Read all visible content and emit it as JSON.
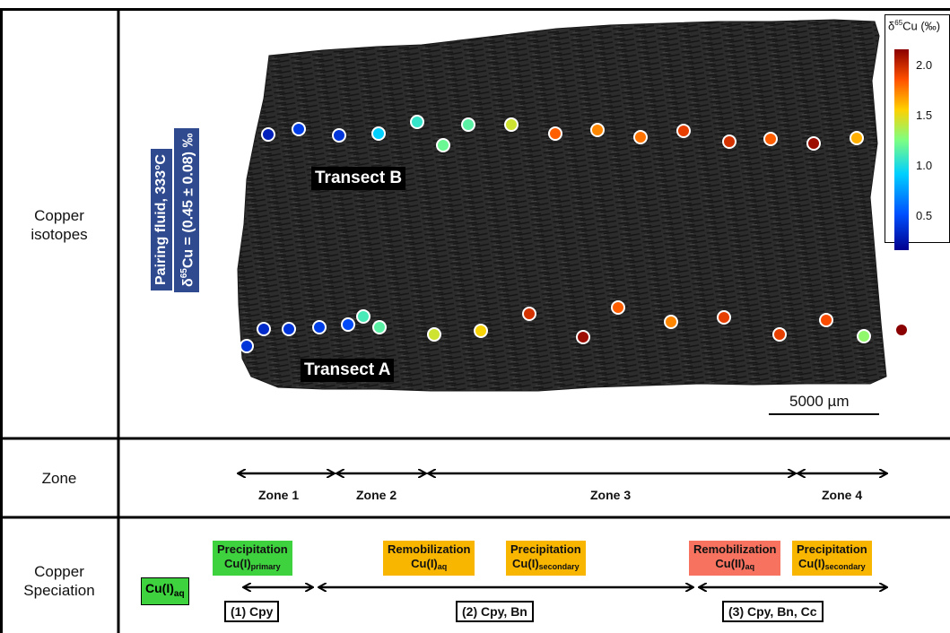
{
  "rows": {
    "copper_isotopes": {
      "line1": "Copper",
      "line2": "isotopes"
    },
    "zone": {
      "label": "Zone"
    },
    "copper_speciation": {
      "line1": "Copper",
      "line2": "Speciation"
    }
  },
  "pairing_fluid": {
    "line1": "Pairing fluid, 333°C",
    "line2_prefix": "δ",
    "line2_sup": "65",
    "line2_suffix": "Cu = (0.45 ± 0.08) ‰"
  },
  "transects": {
    "b": "Transect B",
    "a": "Transect A"
  },
  "scale_bar": {
    "label": "5000 µm"
  },
  "legend": {
    "title_prefix": "δ",
    "title_sup": "65",
    "title_suffix": "Cu (‰)",
    "ticks": [
      {
        "label": "2.0",
        "value": 2.0
      },
      {
        "label": "1.5",
        "value": 1.5
      },
      {
        "label": "1.0",
        "value": 1.0
      },
      {
        "label": "0.5",
        "value": 0.5
      }
    ],
    "min": 0.2,
    "max": 2.3
  },
  "transect_b_points": [
    0.35,
    0.5,
    0.45,
    1.0,
    1.15,
    1.3,
    1.25,
    1.55,
    1.95,
    1.85,
    1.9,
    2.05,
    2.1,
    1.95,
    2.25,
    1.75,
    1.65
  ],
  "transect_a_points": [
    0.45,
    0.4,
    0.45,
    0.5,
    0.55,
    1.2,
    1.25,
    1.55,
    1.65,
    2.1,
    2.25,
    1.95,
    1.85,
    2.05,
    2.05,
    2.0,
    1.4,
    2.3
  ],
  "zones": [
    {
      "label": "Zone 1"
    },
    {
      "label": "Zone 2"
    },
    {
      "label": "Zone 3"
    },
    {
      "label": "Zone 4"
    }
  ],
  "speciation": {
    "cu_aq": {
      "main": "Cu(I)",
      "sub": "aq"
    },
    "boxes": [
      {
        "title": "Precipitation",
        "main": "Cu(I)",
        "sub": "primary",
        "color": "#3fd23f"
      },
      {
        "title": "Remobilization",
        "main": "Cu(I)",
        "sub": "aq",
        "color": "#f9b600"
      },
      {
        "title": "Precipitation",
        "main": "Cu(I)",
        "sub": "secondary",
        "color": "#f9b600"
      },
      {
        "title": "Remobilization",
        "main": "Cu(II)",
        "sub": "aq",
        "color": "#f7735f"
      },
      {
        "title": "Precipitation",
        "main": "Cu(I)",
        "sub": "secondary",
        "color": "#f9b600"
      }
    ],
    "minerals": [
      {
        "label": "(1) Cpy"
      },
      {
        "label": "(2) Cpy, Bn"
      },
      {
        "label": "(3) Cpy, Bn, Cc"
      }
    ]
  }
}
